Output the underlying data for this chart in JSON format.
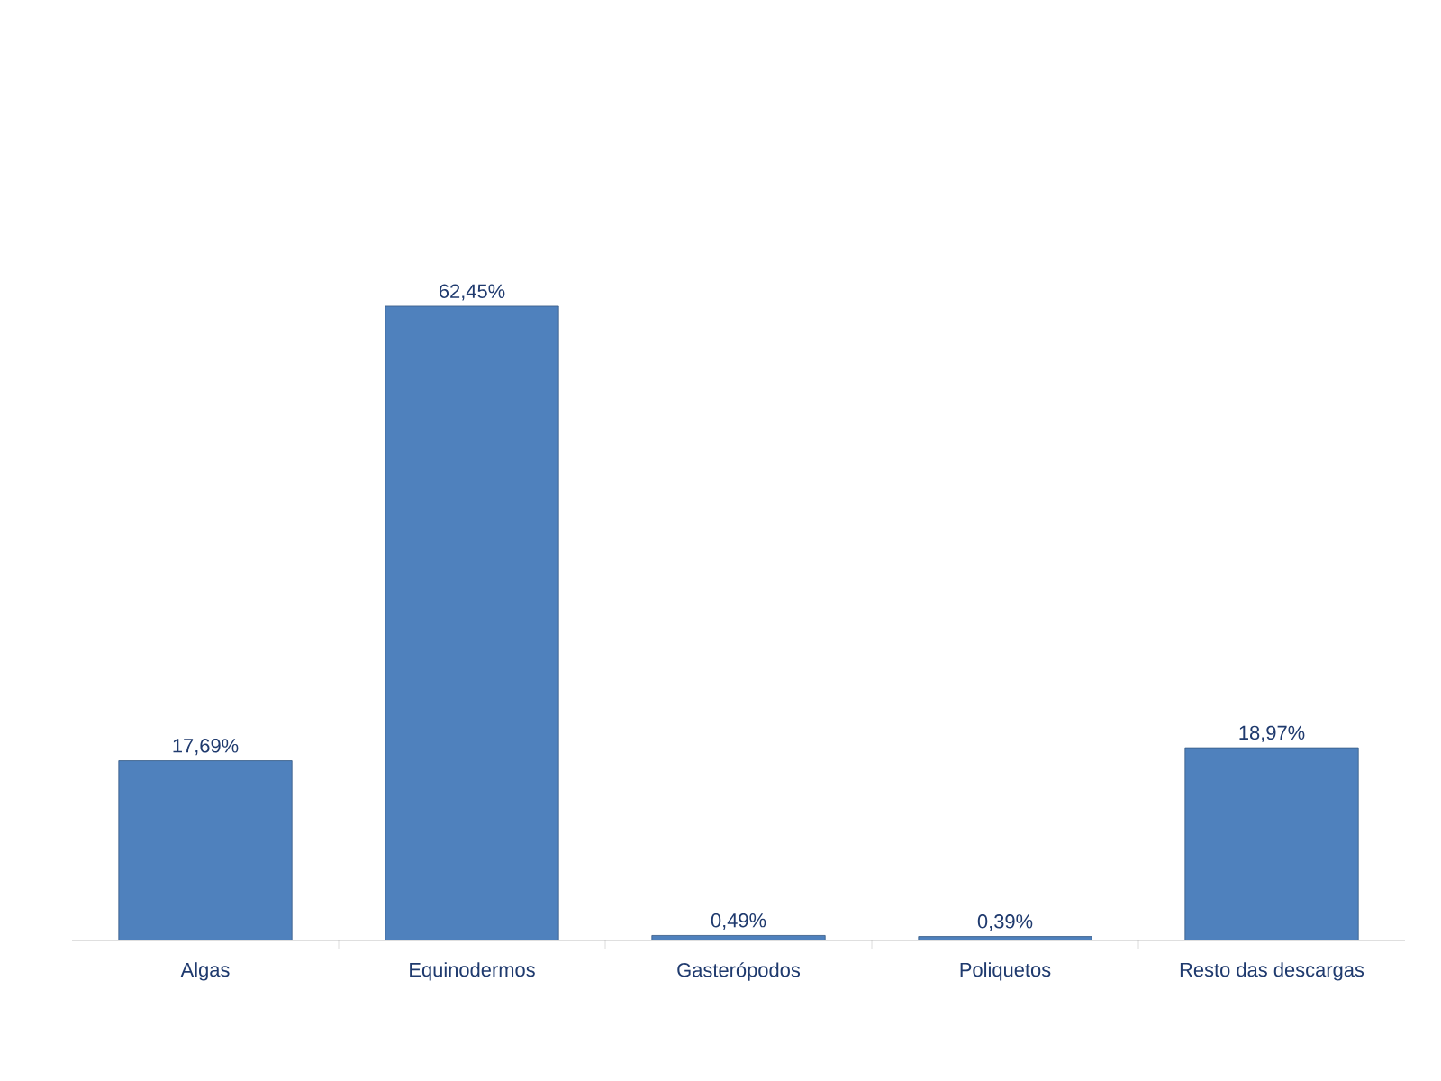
{
  "chart_data": {
    "type": "bar",
    "categories": [
      "Algas",
      "Equinodermos",
      "Gasterópodos",
      "Poliquetos",
      "Resto das descargas"
    ],
    "values": [
      17.69,
      62.45,
      0.49,
      0.39,
      18.97
    ],
    "value_labels": [
      "17,69%",
      "62,45%",
      "0,49%",
      "0,39%",
      "18,97%"
    ],
    "color": "#4f81bd"
  }
}
